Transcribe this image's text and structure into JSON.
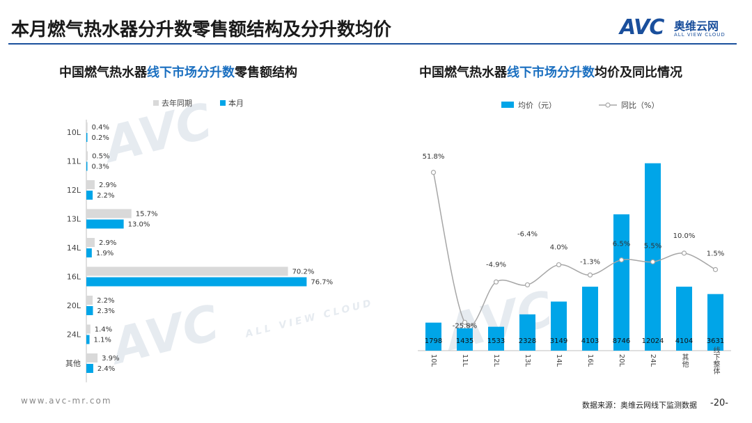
{
  "page": {
    "title": "本月燃气热水器分升数零售额结构及分升数均价",
    "logo_text_cn": "奥维云网",
    "logo_text_en": "ALL VIEW CLOUD",
    "logo_mark": "AVC",
    "footer_url": "www.avc-mr.com",
    "footer_source": "数据来源：奥维云网线下监测数据",
    "page_number": "-20-"
  },
  "left_chart": {
    "title_part1": "中国燃气热水器",
    "title_highlight": "线下市场分升数",
    "title_part2": "零售额结构"
  },
  "right_chart": {
    "title_part1": "中国燃气热水器",
    "title_highlight": "线下市场分升数",
    "title_part2": "均价及同比情况"
  },
  "colors": {
    "accent": "#1a4f9c",
    "highlight": "#1a6fc0",
    "bar_current": "#00a5e8",
    "bar_last_year": "#d9d9d9",
    "line": "#a6a6a6"
  },
  "chart_data": [
    {
      "type": "bar",
      "orientation": "horizontal",
      "categories": [
        "10L",
        "11L",
        "12L",
        "13L",
        "14L",
        "16L",
        "20L",
        "24L",
        "其他"
      ],
      "series": [
        {
          "name": "去年同期",
          "values": [
            0.4,
            0.5,
            2.9,
            15.7,
            2.9,
            70.2,
            2.2,
            1.4,
            3.9
          ],
          "labels": [
            "0.4%",
            "0.5%",
            "2.9%",
            "15.7%",
            "2.9%",
            "70.2%",
            "2.2%",
            "1.4%",
            "3.9%"
          ]
        },
        {
          "name": "本月",
          "values": [
            0.2,
            0.3,
            2.2,
            13.0,
            1.9,
            76.7,
            2.3,
            1.1,
            2.4
          ],
          "labels": [
            "0.2%",
            "0.3%",
            "2.2%",
            "13.0%",
            "1.9%",
            "76.7%",
            "2.3%",
            "1.1%",
            "2.4%"
          ]
        }
      ],
      "xlim": [
        0,
        100
      ],
      "legend_position": "top-left"
    },
    {
      "type": "bar",
      "categories": [
        "10L",
        "11L",
        "12L",
        "13L",
        "14L",
        "16L",
        "20L",
        "24L",
        "其他",
        "线下整体"
      ],
      "series": [
        {
          "name": "均价（元）",
          "type": "bar",
          "axis": "left",
          "values": [
            1798,
            1435,
            1533,
            2328,
            3149,
            4103,
            8746,
            12024,
            4104,
            3631
          ],
          "labels": [
            "1798",
            "1435",
            "1533",
            "2328",
            "3149",
            "4103",
            "8746",
            "12024",
            "4104",
            "3631"
          ]
        },
        {
          "name": "同比（%）",
          "type": "line",
          "axis": "right",
          "values": [
            51.8,
            -25.8,
            -4.9,
            -6.4,
            4.0,
            -1.3,
            6.5,
            5.5,
            10.0,
            1.5
          ],
          "labels": [
            "51.8%",
            "-25.8%",
            "-4.9%",
            "-6.4%",
            "4.0%",
            "-1.3%",
            "6.5%",
            "5.5%",
            "10.0%",
            "1.5%"
          ]
        }
      ],
      "ylim_left": [
        0,
        12500
      ],
      "ylim_right": [
        -30,
        60
      ],
      "legend_position": "top"
    }
  ]
}
